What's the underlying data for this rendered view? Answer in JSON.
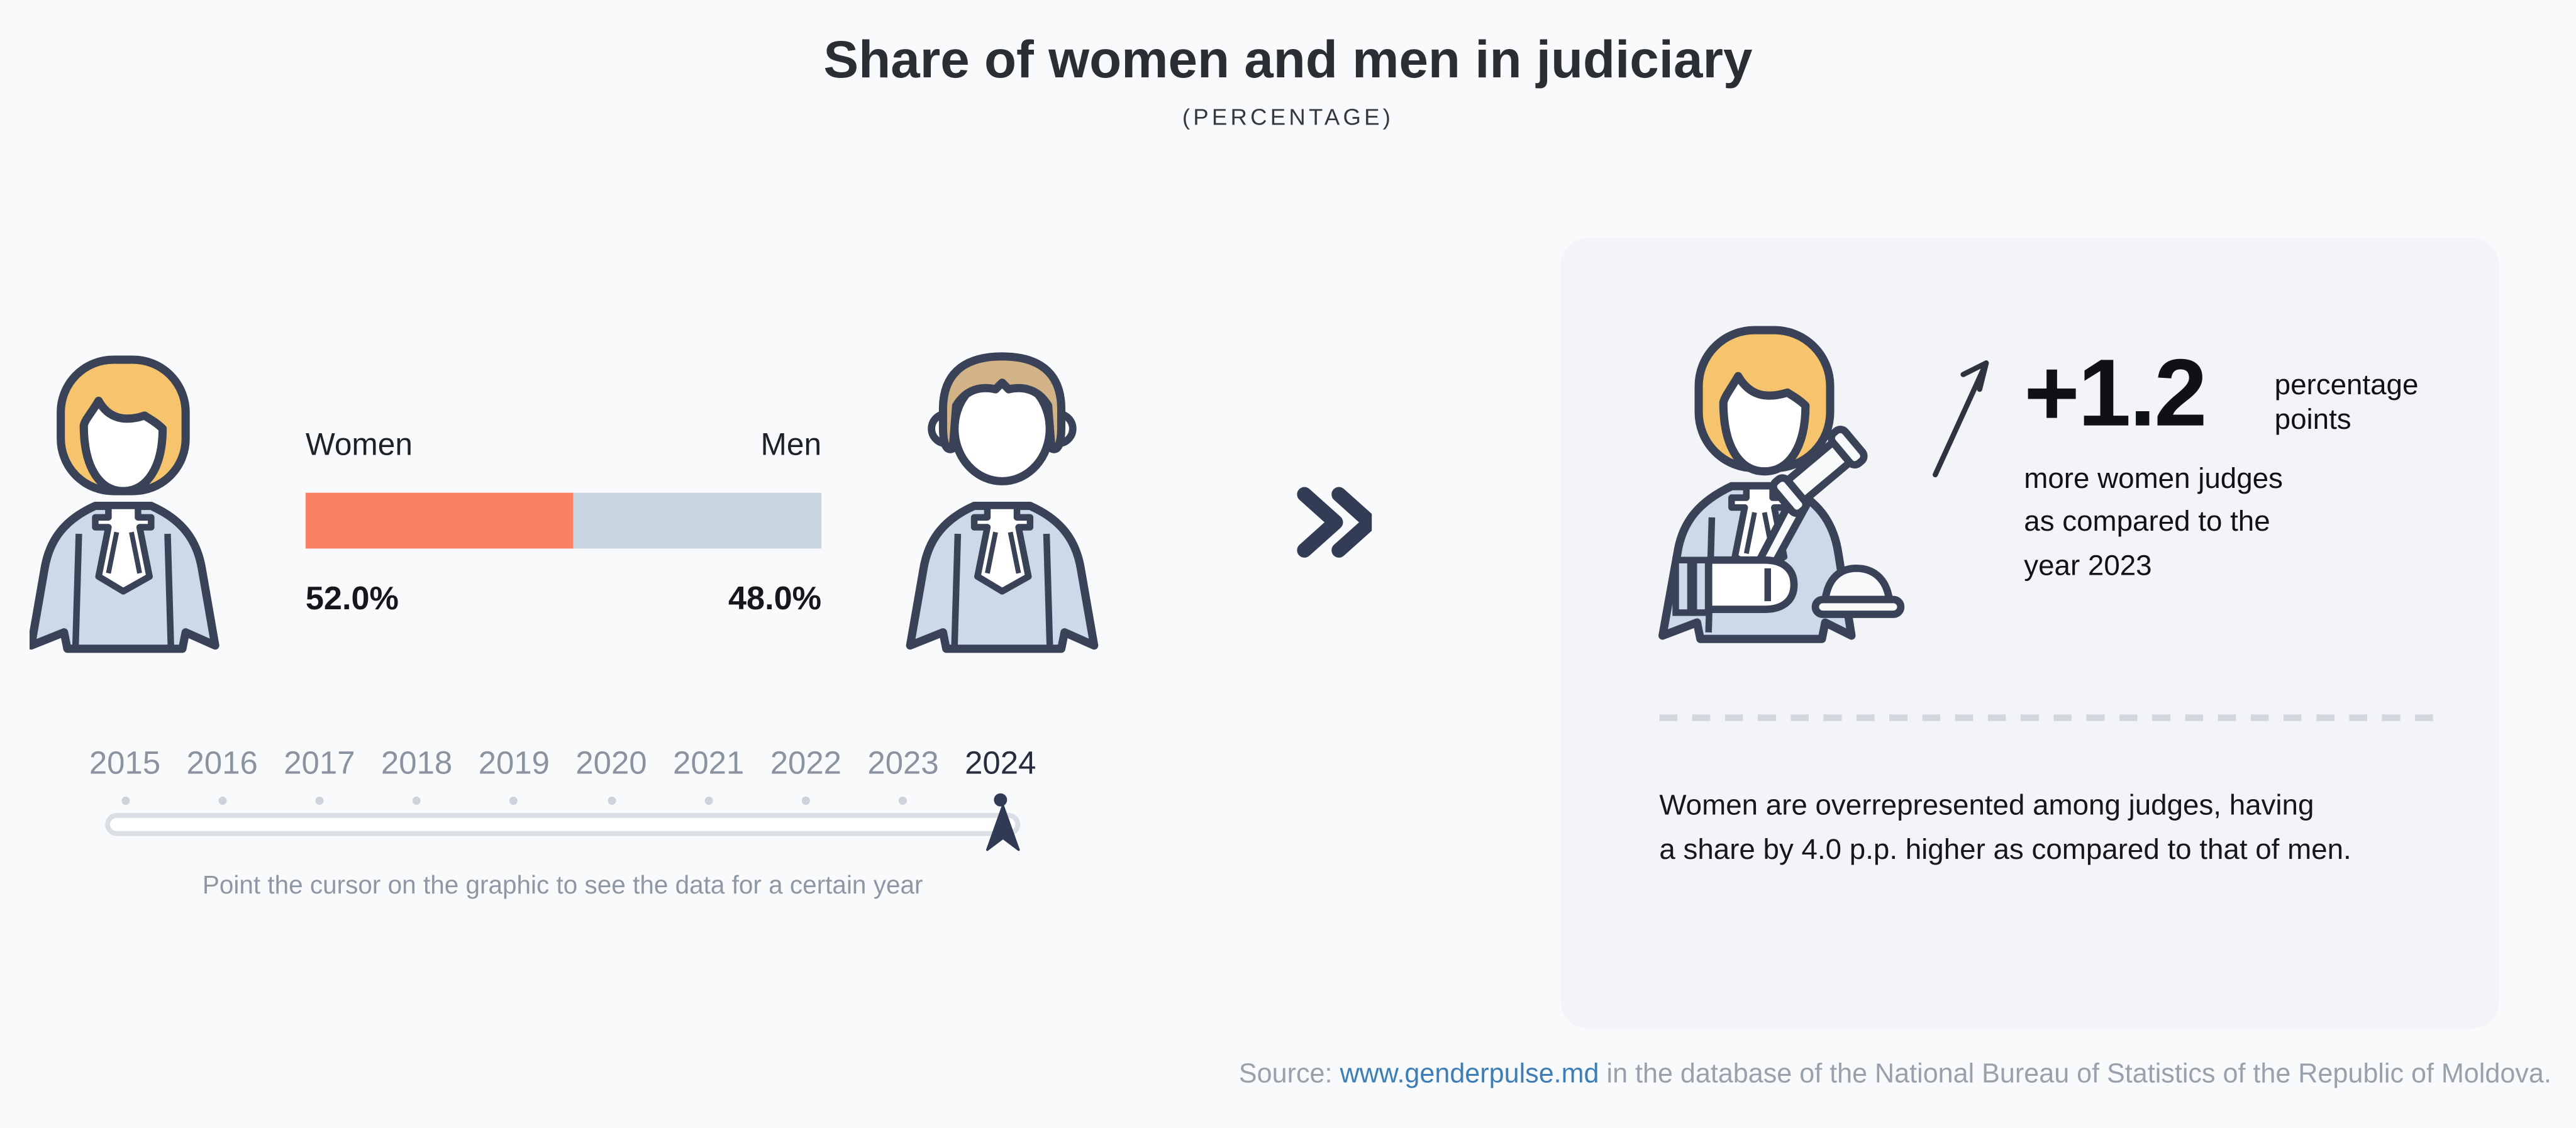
{
  "header": {
    "title": "Share of women and men in judiciary",
    "subtitle": "(PERCENTAGE)"
  },
  "chart_data": {
    "type": "bar",
    "title": "Share of women and men in judiciary",
    "subtitle": "(PERCENTAGE)",
    "orientation": "horizontal-stacked-100",
    "categories": [
      "Women",
      "Men"
    ],
    "values": [
      52.0,
      48.0
    ],
    "value_labels": [
      "52.0%",
      "48.0%"
    ],
    "unit": "percentage",
    "selected_year": "2024",
    "x_years_axis": [
      "2015",
      "2016",
      "2017",
      "2018",
      "2019",
      "2020",
      "2021",
      "2022",
      "2023",
      "2024"
    ],
    "colors": {
      "women": "#fa8262",
      "men": "#cad7e2"
    }
  },
  "bar_chart": {
    "women_label": "Women",
    "men_label": "Men",
    "women_value": "52.0%",
    "men_value": "48.0%"
  },
  "timeline": {
    "years": [
      "2015",
      "2016",
      "2017",
      "2018",
      "2019",
      "2020",
      "2021",
      "2022",
      "2023",
      "2024"
    ],
    "selected_year": "2024",
    "hint": "Point the cursor on the graphic to see the data for a certain year"
  },
  "panel": {
    "delta_value": "+1.2",
    "delta_unit_line1": "percentage",
    "delta_unit_line2": "points",
    "delta_desc_line1": "more women judges",
    "delta_desc_line2": "as compared to the",
    "delta_desc_line3": "year 2023",
    "summary_line1": "Women are overrepresented among judges, having",
    "summary_line2": "a share by 4.0 p.p. higher as compared to that of men."
  },
  "source": {
    "prefix": "Source: ",
    "link_text": "www.genderpulse.md",
    "suffix": " in the database of the National Bureau of Statistics of the Republic of Moldova."
  },
  "colors": {
    "page_bg": "#f9fafb",
    "panel_bg": "#f2f4f7",
    "accent_orange": "#fa8262",
    "bar_blue": "#cad7e2",
    "navy_outline": "#3a4257",
    "chevron_navy": "#333c55",
    "link_blue": "#3e7eb6",
    "muted_gray": "#8e98a4",
    "hair_woman": "#f6c46c",
    "hair_man": "#d2b287",
    "robe_blue": "#cbd9e8"
  }
}
